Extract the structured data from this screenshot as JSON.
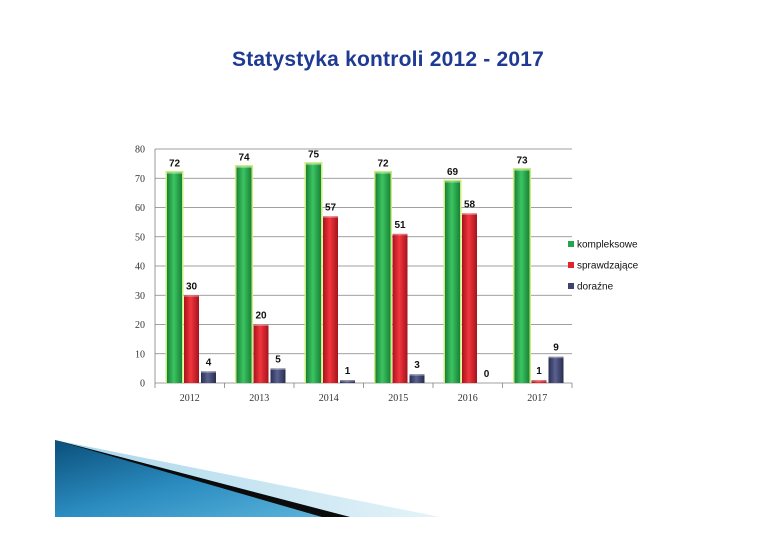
{
  "slide": {
    "title": "Statystyka kontroli 2012 - 2017"
  },
  "colors": {
    "kompleksowe": "#22a84a",
    "kompleksowe_glow": "#c9ef7a",
    "sprawdzajace": "#e3232e",
    "dorazne": "#3d4470",
    "title": "#1f3a93",
    "grid": "#808080"
  },
  "chart_data": {
    "type": "bar",
    "title": "",
    "xlabel": "",
    "ylabel": "",
    "ylim": [
      0,
      80
    ],
    "yticks": [
      0,
      10,
      20,
      30,
      40,
      50,
      60,
      70,
      80
    ],
    "grid": true,
    "legend_position": "right",
    "categories": [
      "2012",
      "2013",
      "2014",
      "2015",
      "2016",
      "2017"
    ],
    "series": [
      {
        "name": "kompleksowe",
        "values": [
          72,
          74,
          75,
          72,
          69,
          73
        ]
      },
      {
        "name": "sprawdzające",
        "values": [
          30,
          20,
          57,
          51,
          58,
          1
        ]
      },
      {
        "name": "doraźne",
        "values": [
          4,
          5,
          1,
          3,
          0,
          9
        ]
      }
    ]
  }
}
